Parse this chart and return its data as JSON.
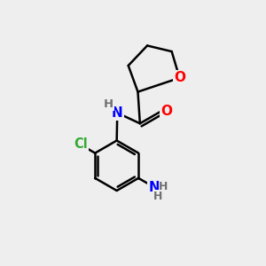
{
  "background_color": "#eeeeee",
  "atom_colors": {
    "O": "#ff0000",
    "N": "#0000ff",
    "Cl": "#33aa33",
    "C": "#000000",
    "H": "#707070"
  },
  "bond_lw": 1.8,
  "font_size": 11,
  "fig_size": [
    3.0,
    3.0
  ],
  "dpi": 100
}
